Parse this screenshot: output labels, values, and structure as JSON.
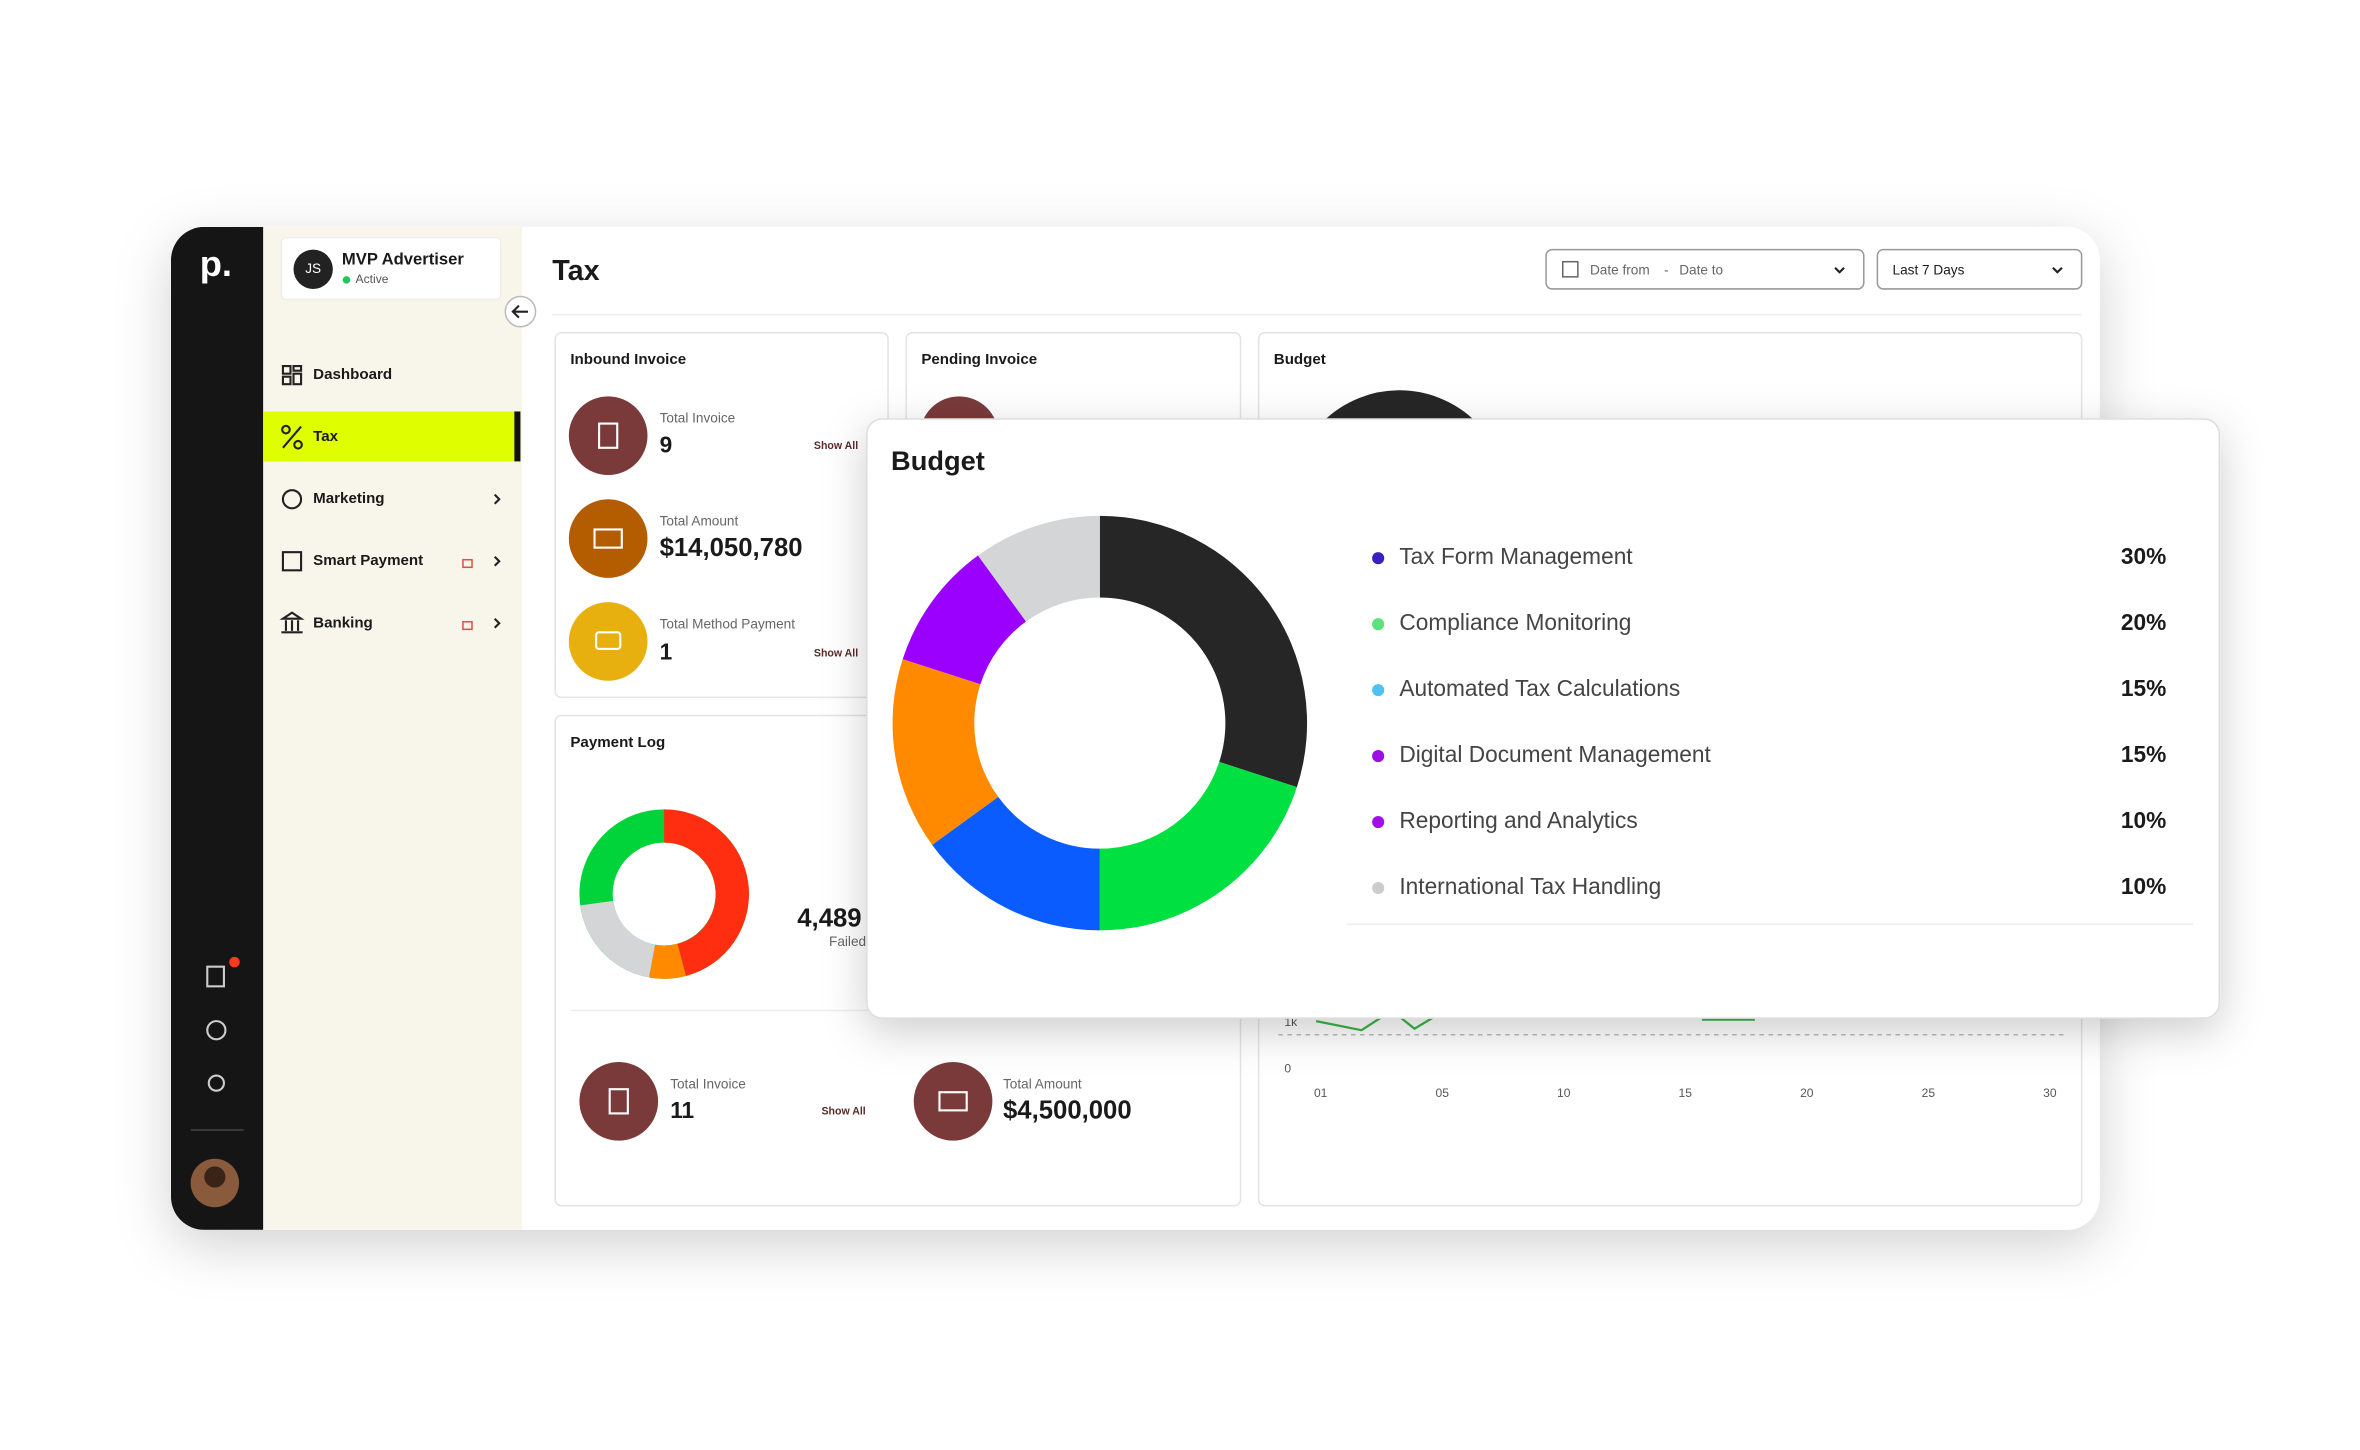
{
  "sidebar": {
    "logo": "p.",
    "user": {
      "initials": "JS",
      "name": "MVP Advertiser",
      "status": "Active"
    },
    "nav": [
      "Dashboard",
      "Tax",
      "Marketing",
      "Smart Payment",
      "Banking"
    ]
  },
  "header": {
    "title": "Tax",
    "date_from": "Date from",
    "date_sep": "-",
    "date_to": "Date to",
    "range": "Last 7 Days"
  },
  "inbound": {
    "title": "Inbound Invoice",
    "items": [
      {
        "label": "Total Invoice",
        "value": "9",
        "action": "Show All"
      },
      {
        "label": "Total Amount",
        "value": "$14,050,780"
      },
      {
        "label": "Total Method Payment",
        "value": "1",
        "action": "Show All"
      }
    ]
  },
  "pending": {
    "title": "Pending Invoice"
  },
  "budget_panel": {
    "title": "Budget",
    "xticks": [
      "01",
      "05",
      "10",
      "15",
      "20",
      "25",
      "30"
    ],
    "yticks": [
      "0",
      "1k"
    ]
  },
  "payment_log": {
    "title": "Payment Log",
    "stat": "4,489",
    "stat_label": "Failed",
    "items": [
      {
        "label": "Total Invoice",
        "value": "11",
        "action": "Show All"
      },
      {
        "label": "Total Amount",
        "value": "$4,500,000"
      }
    ]
  },
  "chart_data": {
    "type": "donut",
    "title": "Budget",
    "categories": [
      "Tax Form Management",
      "Compliance Monitoring",
      "Automated Tax Calculations",
      "Digital Document Management",
      "Reporting and Analytics",
      "International Tax Handling"
    ],
    "values": [
      30,
      20,
      15,
      15,
      10,
      10
    ],
    "value_labels": [
      "30%",
      "20%",
      "15%",
      "15%",
      "10%",
      "10%"
    ],
    "colors": [
      "#262626",
      "#00e040",
      "#0a5cff",
      "#ff8a00",
      "#9b00ff",
      "#d3d5d6"
    ],
    "legend_colors": [
      "#3b1fc0",
      "#5ee07a",
      "#4fc1ee",
      "#9b10e0",
      "#a010e8",
      "#cccccc"
    ]
  }
}
